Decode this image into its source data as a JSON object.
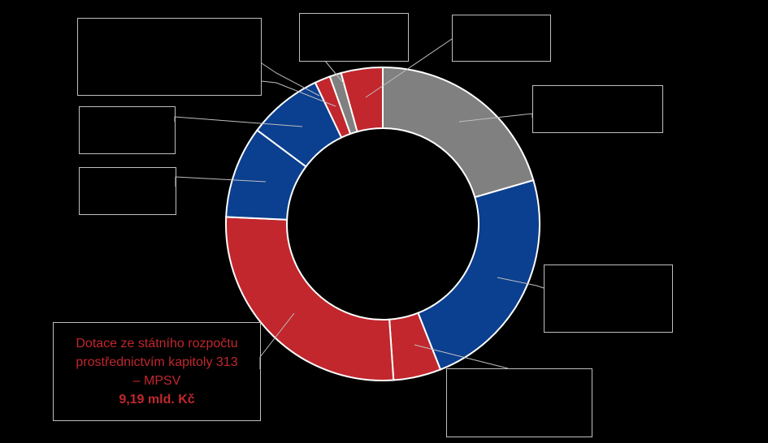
{
  "chart_data": {
    "type": "donut",
    "values": [
      7.03,
      8.06,
      1.68,
      9.19,
      3.26,
      2.64,
      0.55,
      0.41,
      1.47
    ],
    "colors": [
      "#808080",
      "#0b3f8f",
      "#c1272d",
      "#c1272d",
      "#0b3f8f",
      "#0b3f8f",
      "#c1272d",
      "#808080",
      "#c1272d"
    ],
    "labels": [
      null,
      null,
      null,
      "Dotace ze státního rozpočtu prostřednictvím kapitoly 313 – MPSV",
      null,
      null,
      null,
      null,
      null
    ],
    "value_labels": [
      null,
      null,
      null,
      "9,19 mld. Kč",
      null,
      null,
      null,
      null,
      null
    ]
  }
}
